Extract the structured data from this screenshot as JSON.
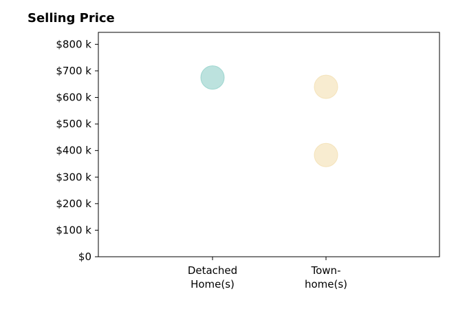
{
  "chart_data": {
    "type": "scatter",
    "title": "Selling Price",
    "xlabel": "",
    "ylabel": "",
    "categories": [
      [
        "Detached",
        "Home(s)"
      ],
      [
        "Town-",
        "home(s)"
      ]
    ],
    "ylim": [
      0,
      845
    ],
    "y_ticks": [
      0,
      100,
      200,
      300,
      400,
      500,
      600,
      700,
      800
    ],
    "y_tick_labels": [
      "$0",
      "$100 k",
      "$200 k",
      "$300 k",
      "$400 k",
      "$500 k",
      "$600 k",
      "$700 k",
      "$800 k"
    ],
    "grid": false,
    "points": [
      {
        "category": 0,
        "y": 675,
        "color": "#8fcfc8"
      },
      {
        "category": 1,
        "y": 640,
        "color": "#f3dfb0"
      },
      {
        "category": 1,
        "y": 383,
        "color": "#f3dfb0"
      }
    ]
  }
}
